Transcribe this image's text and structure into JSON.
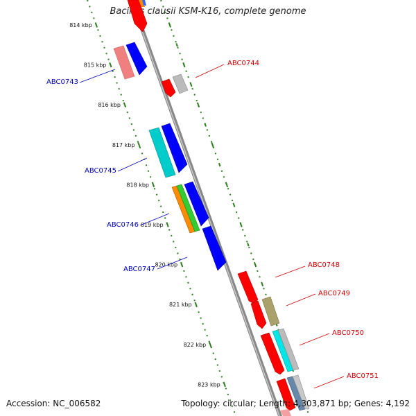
{
  "title": "Bacillus clausii KSM-K16, complete genome",
  "footer": {
    "accession": "Accession: NC_006582",
    "summary": "Topology: circular; Length: 4,303,871 bp; Genes: 4,192"
  },
  "colors": {
    "backbone": "#8a8a8a",
    "ticks": "#2e7d1f",
    "label_left": "#0000bb",
    "label_right": "#cc0000",
    "gene_red": "#ff0000",
    "gene_pink": "#f08080",
    "gene_blue": "#0000ff",
    "gene_cyan": "#00cccc",
    "gene_orange": "#ff8c00",
    "gene_green": "#33cc33",
    "gene_gray": "#bbbbbb",
    "gene_olive": "#aaa26a",
    "gene_steel": "#6688aa"
  },
  "kbp_ticks": [
    {
      "kbp": 814,
      "label": "814 kbp"
    },
    {
      "kbp": 815,
      "label": "815 kbp"
    },
    {
      "kbp": 816,
      "label": "816 kbp"
    },
    {
      "kbp": 817,
      "label": "817 kbp"
    },
    {
      "kbp": 818,
      "label": "818 kbp"
    },
    {
      "kbp": 819,
      "label": "819 kbp"
    },
    {
      "kbp": 820,
      "label": "820 kbp"
    },
    {
      "kbp": 821,
      "label": "821 kbp"
    },
    {
      "kbp": 822,
      "label": "822 kbp"
    },
    {
      "kbp": 823,
      "label": "823 kbp"
    }
  ],
  "gene_labels": [
    {
      "id": "ABC0743",
      "side": "left"
    },
    {
      "id": "ABC0744",
      "side": "right"
    },
    {
      "id": "ABC0745",
      "side": "left"
    },
    {
      "id": "ABC0746",
      "side": "left"
    },
    {
      "id": "ABC0747",
      "side": "left"
    },
    {
      "id": "ABC0748",
      "side": "right"
    },
    {
      "id": "ABC0749",
      "side": "right"
    },
    {
      "id": "ABC0750",
      "side": "right"
    },
    {
      "id": "ABC0751",
      "side": "right"
    }
  ]
}
